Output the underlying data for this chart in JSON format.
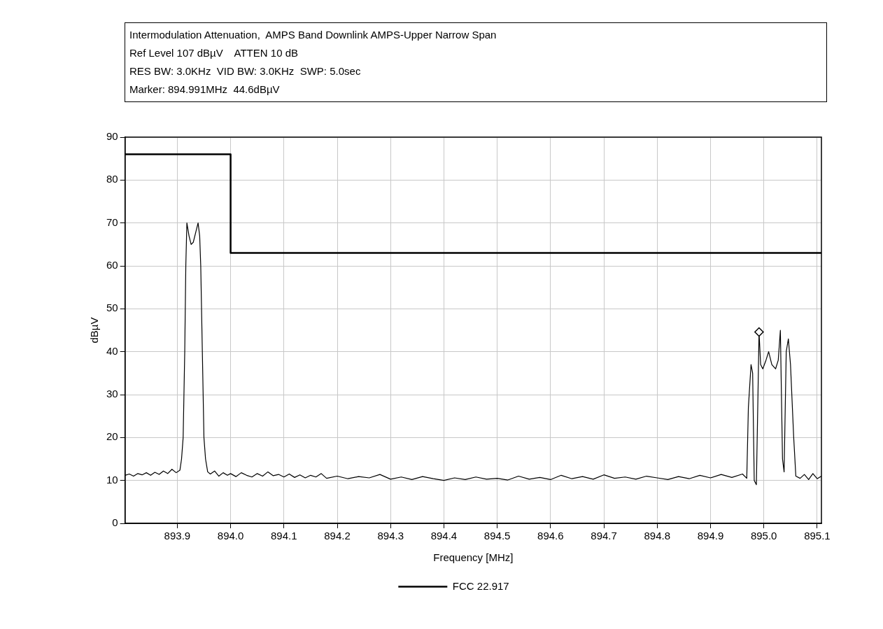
{
  "chart_data": {
    "type": "line",
    "title": "Intermodulation Attenuation,  AMPS Band Downlink AMPS-Upper Narrow Span",
    "subtitle": "Ref Level 107 dBµV    ATTEN 10 dB",
    "annotations": [
      "RES BW: 3.0KHz  VID BW: 3.0KHz  SWP: 5.0sec",
      "Marker: 894.991MHz  44.6dBµV"
    ],
    "xlabel": "Frequency [MHz]",
    "ylabel": "dBµV",
    "xlim": [
      893.802,
      895.108
    ],
    "xticks": [
      893.9,
      {
        "value": 894,
        "label": "894.0"
      },
      894.1,
      894.2,
      894.3,
      894.4,
      894.5,
      894.6,
      894.7,
      894.8,
      894.9,
      {
        "value": 895,
        "label": "895.0"
      },
      895.1
    ],
    "ylim": [
      0,
      90
    ],
    "yticks": [
      0,
      10,
      20,
      30,
      40,
      50,
      60,
      70,
      80,
      90
    ],
    "grid": true,
    "legend": "bottom",
    "marker": "none",
    "line_style": "solid",
    "series": [
      {
        "color": "#000000",
        "x": [
          893.802,
          893.81,
          893.818,
          893.826,
          893.834,
          893.842,
          893.85,
          893.858,
          893.866,
          893.874,
          893.882,
          893.89,
          893.898,
          893.905,
          893.908,
          893.911,
          893.914,
          893.916,
          893.918,
          893.922,
          893.926,
          893.93,
          893.935,
          893.939,
          893.942,
          893.944,
          893.947,
          893.95,
          893.953,
          893.957,
          893.962,
          893.97,
          893.978,
          893.986,
          893.994,
          894.0,
          894.01,
          894.02,
          894.03,
          894.04,
          894.05,
          894.06,
          894.07,
          894.08,
          894.09,
          894.1,
          894.11,
          894.12,
          894.13,
          894.14,
          894.15,
          894.16,
          894.17,
          894.18,
          894.2,
          894.22,
          894.24,
          894.26,
          894.28,
          894.3,
          894.32,
          894.34,
          894.36,
          894.38,
          894.4,
          894.42,
          894.44,
          894.46,
          894.48,
          894.5,
          894.52,
          894.54,
          894.56,
          894.58,
          894.6,
          894.62,
          894.64,
          894.66,
          894.68,
          894.7,
          894.72,
          894.74,
          894.76,
          894.78,
          894.8,
          894.82,
          894.84,
          894.86,
          894.88,
          894.9,
          894.92,
          894.94,
          894.96,
          894.968,
          894.971,
          894.976,
          894.979,
          894.982,
          894.986,
          894.989,
          894.991,
          894.994,
          894.998,
          895.004,
          895.009,
          895.015,
          895.022,
          895.027,
          895.031,
          895.035,
          895.038,
          895.042,
          895.046,
          895.05,
          895.056,
          895.06,
          895.068,
          895.076,
          895.084,
          895.092,
          895.1,
          895.108
        ],
        "values": [
          11.2,
          11.5,
          11.0,
          11.6,
          11.3,
          11.8,
          11.2,
          11.9,
          11.4,
          12.2,
          11.6,
          12.6,
          11.8,
          12.4,
          15,
          20,
          40,
          60,
          70,
          67,
          65,
          65.5,
          68,
          70,
          67,
          60,
          40,
          20,
          15,
          12,
          11.5,
          12.2,
          11.0,
          11.8,
          11.2,
          11.6,
          10.9,
          11.8,
          11.2,
          10.8,
          11.6,
          11.0,
          12.0,
          11.1,
          11.4,
          10.8,
          11.5,
          10.7,
          11.3,
          10.6,
          11.2,
          10.8,
          11.6,
          10.5,
          11.0,
          10.4,
          10.9,
          10.6,
          11.4,
          10.3,
          10.8,
          10.2,
          10.9,
          10.4,
          10.0,
          10.6,
          10.2,
          10.8,
          10.3,
          10.5,
          10.1,
          11.0,
          10.3,
          10.7,
          10.2,
          11.2,
          10.4,
          10.9,
          10.3,
          11.3,
          10.5,
          10.8,
          10.3,
          11.0,
          10.6,
          10.2,
          10.9,
          10.4,
          11.2,
          10.6,
          11.4,
          10.7,
          11.5,
          10.5,
          27,
          37,
          35,
          10,
          9,
          30,
          44.6,
          37,
          36,
          38,
          40,
          37,
          36,
          38,
          45,
          15,
          12,
          40,
          43,
          37,
          20,
          11,
          10.5,
          11.4,
          10.2,
          11.6,
          10.4,
          11.0
        ]
      },
      {
        "name": "FCC 22.917",
        "color": "#000000",
        "x": [
          893.802,
          894.0,
          894.0,
          895.108
        ],
        "values": [
          86,
          86,
          63,
          63
        ]
      },
      {
        "type": "scatter",
        "marker": "diamond",
        "color": "#000000",
        "x": [
          894.991
        ],
        "values": [
          44.6
        ]
      }
    ]
  }
}
